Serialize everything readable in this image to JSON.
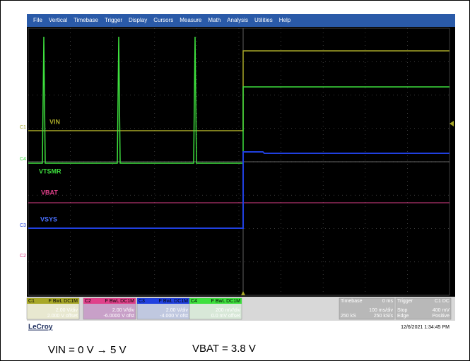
{
  "menu": [
    "File",
    "Vertical",
    "Timebase",
    "Trigger",
    "Display",
    "Cursors",
    "Measure",
    "Math",
    "Analysis",
    "Utilities",
    "Help"
  ],
  "channel_markers": [
    "C1",
    "C4",
    "C3",
    "C2"
  ],
  "trace_labels": [
    "VIN",
    "VTSMR",
    "VBAT",
    "VSYS"
  ],
  "panels": {
    "c1": {
      "name": "C1",
      "flags": "F BwL DC1M",
      "scale": "2.00 V/div",
      "offset": "2.000 V offset"
    },
    "c2": {
      "name": "C2",
      "flags": "F BwL DC1M",
      "scale": "2.00 V/div",
      "offset": "-6.0000 V ofst"
    },
    "c3": {
      "name": "C3",
      "flags": "F BwL DC1M",
      "scale": "2.00 V/div",
      "offset": "-4.000 V ofst"
    },
    "c4": {
      "name": "C4",
      "flags": "F BwL DC1M",
      "scale": "200 mV/div",
      "offset": "0.0 mV offset"
    },
    "timebase": {
      "label": "Timebase",
      "delay": "0 ms",
      "per_div": "100 ms/div",
      "samples": "250 kS",
      "rate": "250 kS/s"
    },
    "trigger": {
      "label": "Trigger",
      "source": "C1 DC",
      "mode": "Stop",
      "level": "400 mV",
      "type": "Edge",
      "slope": "Positive"
    }
  },
  "brand": "LeCroy",
  "timestamp": "12/6/2021 1:34:45 PM",
  "caption": {
    "left": "VIN = 0 V → 5 V",
    "right": "VBAT = 3.8 V"
  }
}
